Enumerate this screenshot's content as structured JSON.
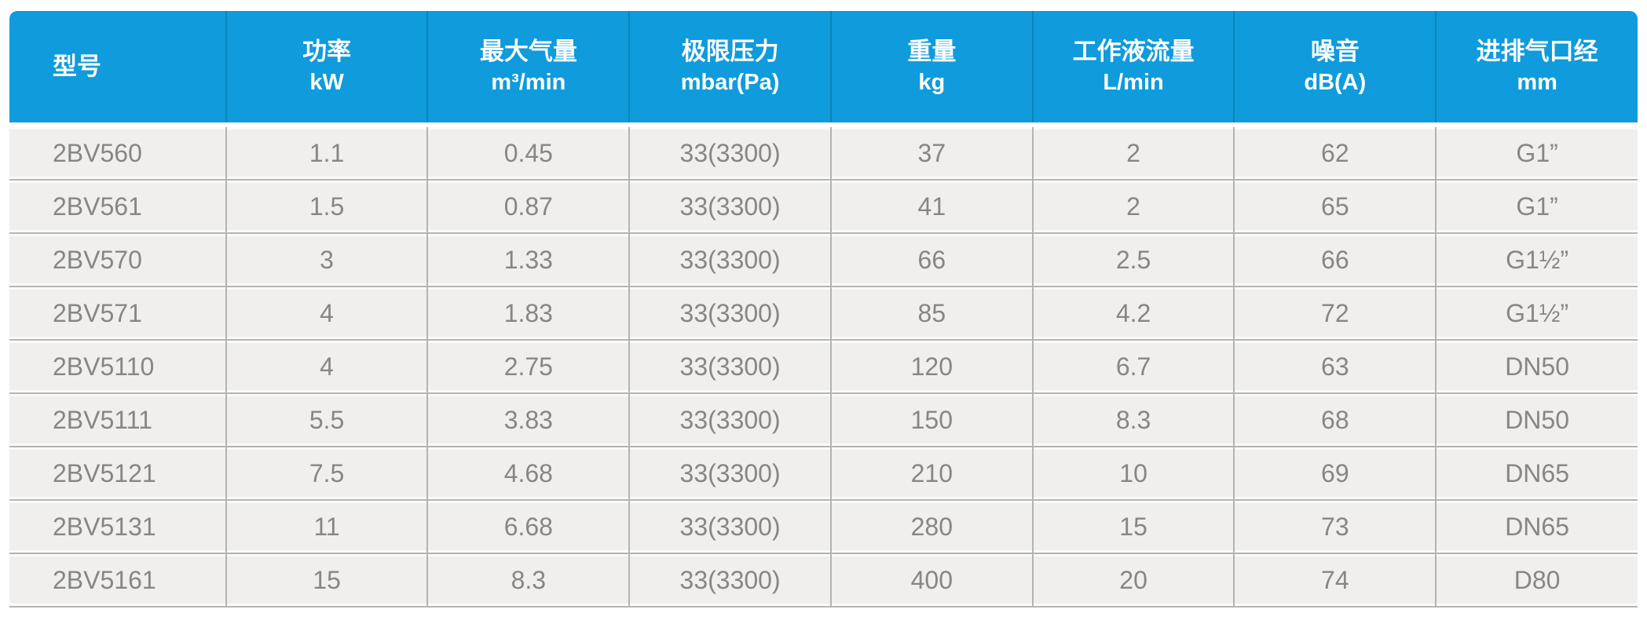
{
  "colors": {
    "header_bg": "#0f9bdc",
    "header_divider": "#0e83ba",
    "header_text": "#ffffff",
    "row_bg": "#f0efed",
    "row_text": "#868686",
    "grid_line": "#b5b5b5",
    "page_bg": "#ffffff"
  },
  "table": {
    "columns": [
      {
        "title": "型号",
        "unit": ""
      },
      {
        "title": "功率",
        "unit": "kW"
      },
      {
        "title": "最大气量",
        "unit": "m³/min"
      },
      {
        "title": "极限压力",
        "unit": "mbar(Pa)"
      },
      {
        "title": "重量",
        "unit": "kg"
      },
      {
        "title": "工作液流量",
        "unit": "L/min"
      },
      {
        "title": "噪音",
        "unit": "dB(A)"
      },
      {
        "title": "进排气口经",
        "unit": "mm"
      }
    ],
    "rows": [
      {
        "cells": [
          "2BV560",
          "1.1",
          "0.45",
          "33(3300)",
          "37",
          "2",
          "62",
          "G1”"
        ]
      },
      {
        "cells": [
          "2BV561",
          "1.5",
          "0.87",
          "33(3300)",
          "41",
          "2",
          "65",
          "G1”"
        ]
      },
      {
        "cells": [
          "2BV570",
          "3",
          "1.33",
          "33(3300)",
          "66",
          "2.5",
          "66",
          "G1½”"
        ]
      },
      {
        "cells": [
          "2BV571",
          "4",
          "1.83",
          "33(3300)",
          "85",
          "4.2",
          "72",
          "G1½”"
        ]
      },
      {
        "cells": [
          "2BV5110",
          "4",
          "2.75",
          "33(3300)",
          "120",
          "6.7",
          "63",
          "DN50"
        ]
      },
      {
        "cells": [
          "2BV5111",
          "5.5",
          "3.83",
          "33(3300)",
          "150",
          "8.3",
          "68",
          "DN50"
        ]
      },
      {
        "cells": [
          "2BV5121",
          "7.5",
          "4.68",
          "33(3300)",
          "210",
          "10",
          "69",
          "DN65"
        ]
      },
      {
        "cells": [
          "2BV5131",
          "11",
          "6.68",
          "33(3300)",
          "280",
          "15",
          "73",
          "DN65"
        ]
      },
      {
        "cells": [
          "2BV5161",
          "15",
          "8.3",
          "33(3300)",
          "400",
          "20",
          "74",
          "D80"
        ]
      }
    ]
  }
}
